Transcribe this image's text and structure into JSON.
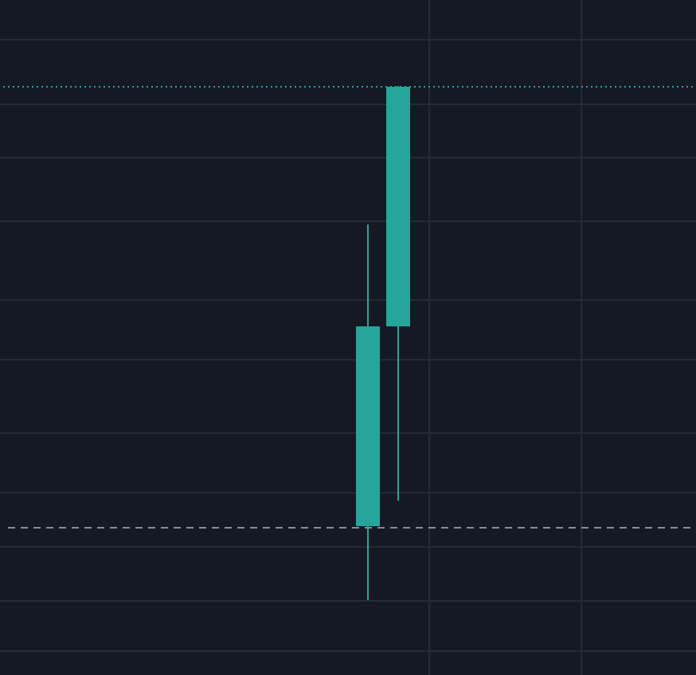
{
  "chart_data": {
    "type": "candlestick",
    "title": "",
    "xlabel": "",
    "ylabel": "",
    "ylim": [
      0,
      84.8
    ],
    "grid": true,
    "candles": [
      {
        "open": 18.7,
        "high": 56.6,
        "low": 9.4,
        "close": 43.8
      },
      {
        "open": 43.8,
        "high": 74.0,
        "low": 21.9,
        "close": 73.9
      }
    ],
    "last_price_line": 73.9,
    "dashed_reference_line": 18.5
  },
  "colors": {
    "background": "#151924",
    "grid": "#262a35",
    "up_candle": "#26a69a",
    "last_price_line": "#26a69a",
    "reference_line": "#b2b5be"
  }
}
